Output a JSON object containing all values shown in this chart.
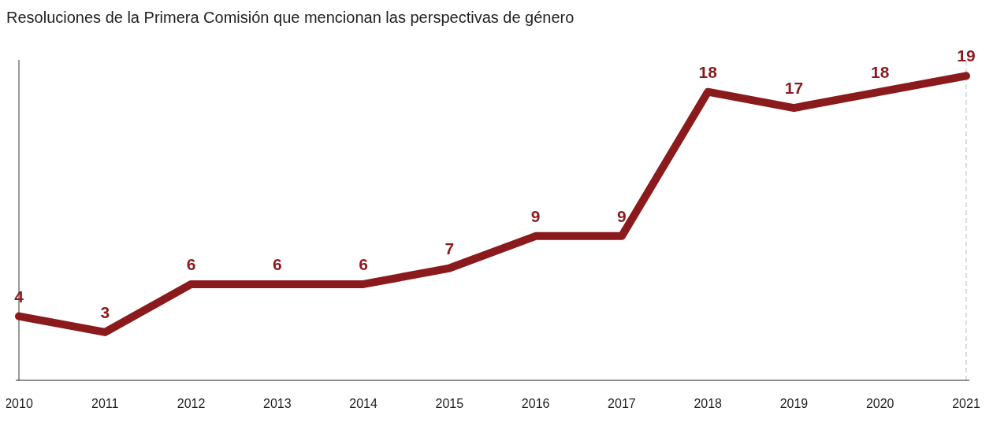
{
  "chart_data": {
    "type": "line",
    "title": "Resoluciones de la Primera Comisión que mencionan las perspectivas de género",
    "categories": [
      "2010",
      "2011",
      "2012",
      "2013",
      "2014",
      "2015",
      "2016",
      "2017",
      "2018",
      "2019",
      "2020",
      "2021"
    ],
    "series": [
      {
        "color": "#8b1a1d",
        "values": [
          4,
          3,
          6,
          6,
          6,
          7,
          9,
          9,
          18,
          17,
          18,
          19
        ]
      }
    ],
    "data_labels": true,
    "grid": false,
    "legend": false,
    "marker": "none",
    "line_style": "solid",
    "ref_lines": [
      {
        "axis": "x",
        "value": "2010",
        "color": "#333333",
        "line_style": "solid"
      },
      {
        "axis": "x",
        "value": "2021",
        "color": "#bbbbbb",
        "line_style": "dashed"
      }
    ]
  }
}
